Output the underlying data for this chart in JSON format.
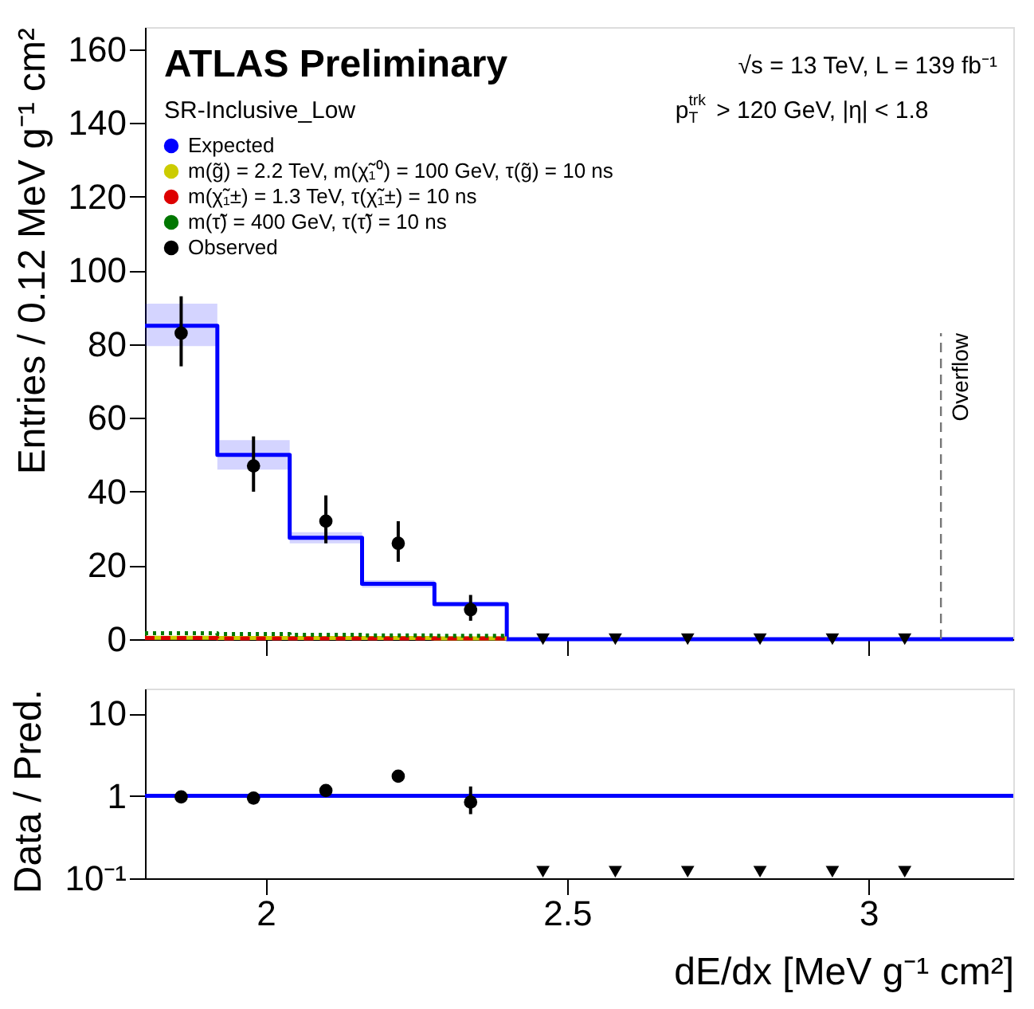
{
  "chart_data": [
    {
      "type": "step",
      "ylabel": "Entries / 0.12 MeV g⁻¹ cm²",
      "annotations": [
        "ATLAS Preliminary",
        "SR-Inclusive_Low",
        "√s = 13 TeV,  L = 139 fb⁻¹",
        "p$^{trk}$$_{T}$ > 120 GeV, |η| < 1.8"
      ],
      "xlim": [
        1.8,
        3.24
      ],
      "xticks": [
        2,
        2.5,
        3
      ],
      "ylim": [
        0,
        166
      ],
      "yticks": [
        0,
        20,
        40,
        60,
        80,
        100,
        120,
        140,
        160
      ],
      "tick_labels": "y",
      "grid": false,
      "legend": "top left",
      "ref_lines": [
        {
          "axis": "x",
          "value": 3.12,
          "label": "Overflow",
          "color": "#777777",
          "line_style": "dashed"
        }
      ],
      "series": [
        {
          "name": "Expected",
          "color": "#0000ff",
          "x": [
            1.8,
            1.92,
            2.04,
            2.16,
            2.28,
            2.4,
            2.52,
            2.64,
            2.76,
            2.88,
            3.0,
            3.12,
            3.24
          ],
          "values": [
            85,
            50,
            27.5,
            15,
            9.5,
            0,
            0,
            0,
            0,
            0,
            0,
            0,
            0
          ],
          "lower": [
            79.5,
            46,
            26,
            14,
            9,
            0,
            0,
            0,
            0,
            0,
            0,
            0,
            0
          ],
          "upper": [
            91,
            54,
            29,
            16,
            10,
            0,
            0,
            0,
            0,
            0,
            0,
            0,
            0
          ]
        },
        {
          "name": "m(g̃) = 2.2 TeV, m(χ̃₁⁰) = 100 GeV, τ(g̃) = 10 ns",
          "color": "#cccc00",
          "line_style": "solid",
          "x": [
            1.8,
            1.92,
            2.04,
            2.16,
            2.28,
            2.4
          ],
          "values": [
            0.4,
            0.3,
            0.3,
            0.3,
            0.2,
            0.2
          ]
        },
        {
          "name": "m(χ̃₁±) = 1.3 TeV, τ(χ̃₁±) = 10 ns",
          "color": "#dd0000",
          "line_style": "dashed",
          "x": [
            1.8,
            1.92,
            2.04,
            2.16,
            2.28,
            2.4
          ],
          "values": [
            0.3,
            0.2,
            0.2,
            0.2,
            0.2,
            0.2
          ]
        },
        {
          "name": "m(τ̃) =  400 GeV, τ(τ̃) = 10 ns",
          "color": "#007700",
          "line_style": "dotted",
          "x": [
            1.8,
            1.92,
            2.04,
            2.16,
            2.28,
            2.4
          ],
          "values": [
            1.6,
            1.4,
            1.2,
            1.0,
            0.9,
            0.9
          ]
        },
        {
          "name": "Observed",
          "type": "scatter",
          "marker": "circle",
          "color": "#000000",
          "x": [
            1.86,
            1.98,
            2.1,
            2.22,
            2.34
          ],
          "values": [
            83,
            47,
            32,
            26,
            8
          ],
          "errors": [
            [
              74,
              93
            ],
            [
              40,
              55
            ],
            [
              26,
              39
            ],
            [
              21,
              32
            ],
            [
              5,
              12
            ]
          ]
        },
        {
          "type": "scatter",
          "marker": "triangle",
          "color": "#000000",
          "x": [
            2.46,
            2.58,
            2.7,
            2.82,
            2.94,
            3.06
          ],
          "values": [
            0,
            0,
            0,
            0,
            0,
            0
          ]
        }
      ]
    },
    {
      "type": "step",
      "xlabel": "dE/dx [MeV g⁻¹ cm²]",
      "ylabel": "Data / Pred.",
      "log": "y",
      "xlim": [
        1.8,
        3.24
      ],
      "xticks": [
        2,
        2.5,
        3
      ],
      "ylim": [
        0.1,
        20
      ],
      "yticks": [
        {
          "value": 0.1,
          "label": "10⁻¹"
        },
        1,
        10
      ],
      "grid": false,
      "series": [
        {
          "color": "#0000ff",
          "x": [
            1.8,
            3.24
          ],
          "values": [
            1,
            1
          ]
        },
        {
          "type": "scatter",
          "marker": "circle",
          "color": "#000000",
          "x": [
            1.86,
            1.98,
            2.1,
            2.22,
            2.34
          ],
          "values": [
            0.97,
            0.94,
            1.16,
            1.73,
            0.84
          ],
          "errors": [
            [
              0.9,
              1.05
            ],
            [
              0.87,
              1.02
            ],
            [
              1.02,
              1.32
            ],
            [
              1.45,
              2.05
            ],
            [
              0.6,
              1.3
            ]
          ]
        },
        {
          "type": "scatter",
          "marker": "triangle",
          "color": "#000000",
          "x": [
            2.46,
            2.58,
            2.7,
            2.82,
            2.94,
            3.06
          ],
          "values": [
            0.12,
            0.12,
            0.12,
            0.12,
            0.12,
            0.12
          ]
        }
      ]
    }
  ]
}
